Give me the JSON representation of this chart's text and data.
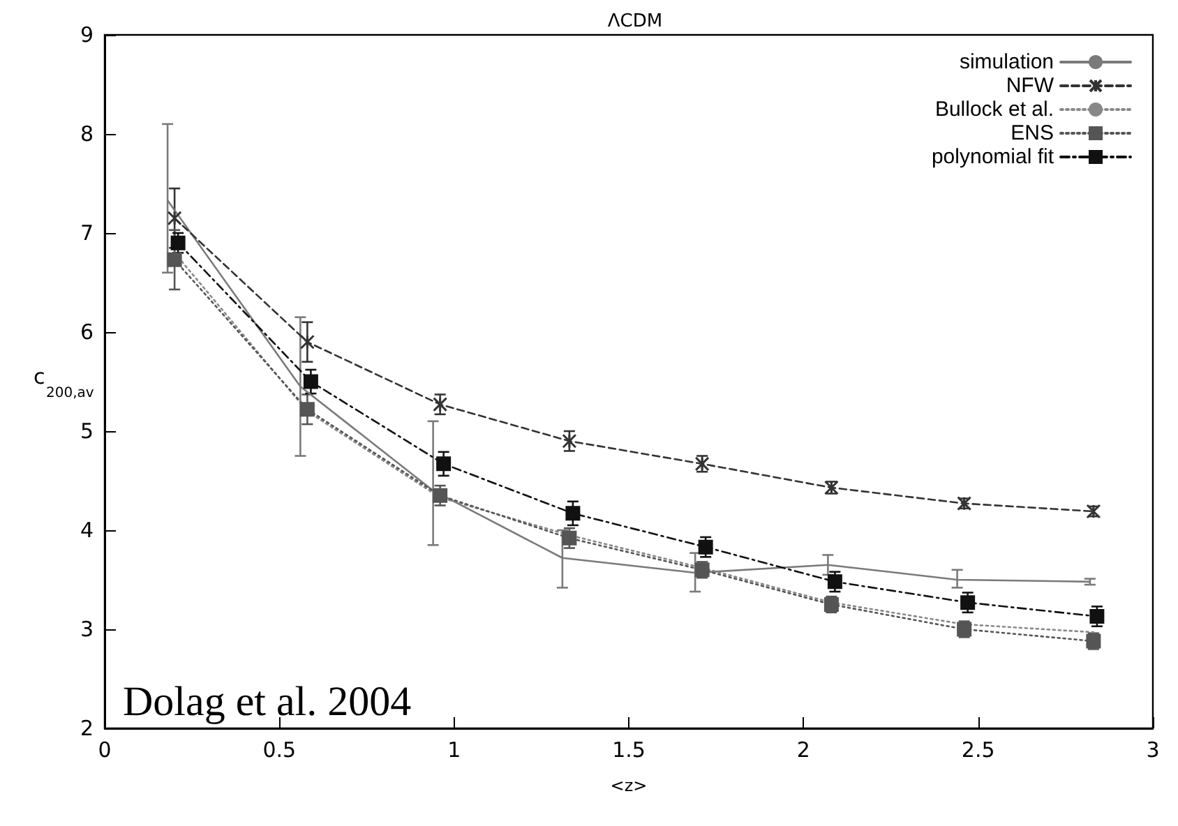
{
  "chart_data": {
    "type": "line",
    "title": "ΛCDM",
    "xlabel": "<z>",
    "ylabel": "c$_{200,av}$",
    "xlim": [
      0,
      3
    ],
    "xticks": [
      0,
      0.5,
      1,
      1.5,
      2,
      2.5,
      3
    ],
    "ylim": [
      2,
      9
    ],
    "yticks": [
      2,
      3,
      4,
      5,
      6,
      7,
      8,
      9
    ],
    "grid": false,
    "legend": "top right",
    "annotations": [
      "Dolag et al. 2004"
    ],
    "series": [
      {
        "name": "simulation",
        "color": "#7a7a7a",
        "line_style": "solid",
        "marker": "none",
        "x": [
          0.18,
          0.56,
          0.94,
          1.31,
          1.69,
          2.07,
          2.44,
          2.82
        ],
        "values": [
          7.33,
          5.45,
          4.4,
          3.72,
          3.57,
          3.65,
          3.5,
          3.48
        ],
        "errors": [
          [
            6.6,
            8.1
          ],
          [
            4.75,
            6.15
          ],
          [
            3.85,
            5.1
          ],
          [
            3.42,
            4.0
          ],
          [
            3.38,
            3.77
          ],
          [
            3.55,
            3.75
          ],
          [
            3.42,
            3.6
          ],
          [
            3.45,
            3.51
          ]
        ]
      },
      {
        "name": "NFW",
        "color": "#333333",
        "line_style": "dashed",
        "marker": "cross",
        "x": [
          0.2,
          0.58,
          0.96,
          1.33,
          1.71,
          2.08,
          2.46,
          2.83
        ],
        "values": [
          7.15,
          5.9,
          5.27,
          4.9,
          4.67,
          4.43,
          4.27,
          4.19
        ],
        "errors": [
          0.3,
          0.2,
          0.1,
          0.1,
          0.08,
          0.06,
          0.05,
          0.05
        ]
      },
      {
        "name": "Bullock et al.",
        "color": "#888888",
        "line_style": "dotted",
        "marker": "none",
        "x": [
          0.2,
          0.58,
          0.96,
          1.33,
          1.71,
          2.08,
          2.46,
          2.83
        ],
        "values": [
          6.8,
          5.2,
          4.33,
          3.95,
          3.62,
          3.27,
          3.05,
          2.97
        ]
      },
      {
        "name": "ENS",
        "color": "#555555",
        "line_style": "dotted",
        "marker": "square",
        "x": [
          0.2,
          0.58,
          0.96,
          1.33,
          1.71,
          2.08,
          2.46,
          2.83
        ],
        "values": [
          6.73,
          5.22,
          4.35,
          3.92,
          3.6,
          3.25,
          3.0,
          2.88
        ],
        "errors": [
          0.3,
          0.15,
          0.1,
          0.1,
          0.08,
          0.08,
          0.08,
          0.08
        ]
      },
      {
        "name": "polynomial fit",
        "color": "#111111",
        "line_style": "dashdot",
        "marker": "square",
        "x": [
          0.21,
          0.59,
          0.97,
          1.34,
          1.72,
          2.09,
          2.47,
          2.84
        ],
        "values": [
          6.9,
          5.5,
          4.67,
          4.17,
          3.83,
          3.48,
          3.27,
          3.13
        ],
        "errors": [
          0.1,
          0.12,
          0.12,
          0.12,
          0.1,
          0.1,
          0.1,
          0.1
        ]
      }
    ]
  }
}
